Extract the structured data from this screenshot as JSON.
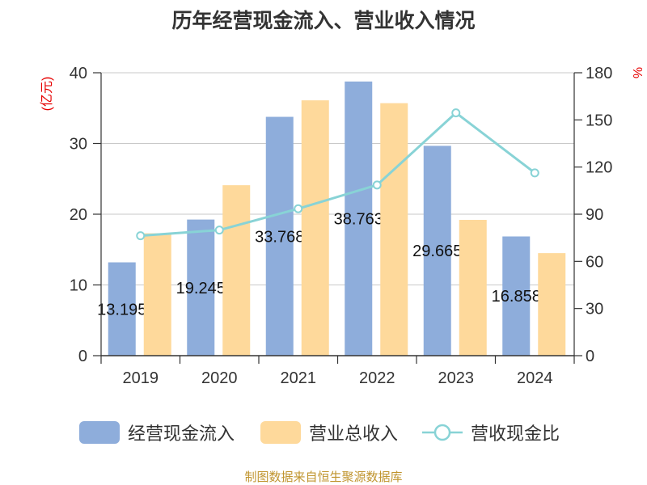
{
  "footer": "制图数据来自恒生聚源数据库",
  "chart_data": {
    "type": "bar",
    "title": "历年经营现金流入、营业收入情况",
    "categories": [
      "2019",
      "2020",
      "2021",
      "2022",
      "2023",
      "2024"
    ],
    "series": [
      {
        "name": "经营现金流入",
        "type": "bar",
        "axis": "left",
        "color": "#8eaddb",
        "show_labels": true,
        "values": [
          13.195,
          19.245,
          33.768,
          38.763,
          29.665,
          16.858
        ]
      },
      {
        "name": "营业总收入",
        "type": "bar",
        "axis": "left",
        "color": "#fed99b",
        "show_labels": false,
        "values": [
          17.3,
          24.1,
          36.1,
          35.7,
          19.2,
          14.5
        ]
      },
      {
        "name": "营收现金比",
        "type": "line",
        "axis": "right",
        "color": "#88d3d6",
        "values": [
          76.3,
          79.9,
          93.5,
          108.6,
          154.5,
          116.3
        ]
      }
    ],
    "y_left": {
      "label": "(亿元)",
      "range": [
        0,
        40
      ],
      "ticks": [
        0,
        10,
        20,
        30,
        40
      ]
    },
    "y_right": {
      "label": "%",
      "range": [
        0,
        180
      ],
      "ticks": [
        0,
        30,
        60,
        90,
        120,
        150,
        180
      ]
    },
    "axis_label_color": "#e60000",
    "grid": true,
    "legend": "bottom"
  }
}
